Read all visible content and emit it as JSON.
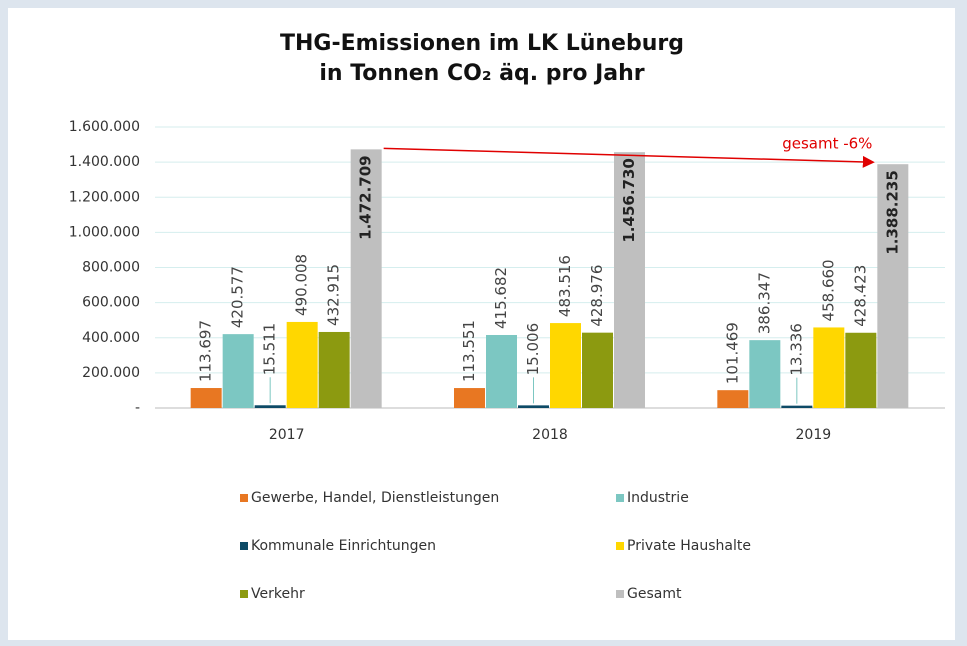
{
  "chart_data": {
    "type": "bar",
    "title": "THG-Emissionen im LK Lüneburg",
    "subtitle": "in Tonnen CO₂ äq. pro Jahr",
    "categories": [
      "2017",
      "2018",
      "2019"
    ],
    "series": [
      {
        "name": "Gewerbe, Handel, Dienstleistungen",
        "color": "#e87722",
        "values": [
          113697,
          113551,
          101469
        ],
        "value_labels": [
          "113.697",
          "113.551",
          "101.469"
        ]
      },
      {
        "name": "Industrie",
        "color": "#7cc7c2",
        "values": [
          420577,
          415682,
          386347
        ],
        "value_labels": [
          "420.577",
          "415.682",
          "386.347"
        ]
      },
      {
        "name": "Kommunale Einrichtungen",
        "color": "#0d4a66",
        "values": [
          15511,
          15006,
          13336
        ],
        "value_labels": [
          "15.511",
          "15.006",
          "13.336"
        ]
      },
      {
        "name": "Private Haushalte",
        "color": "#ffd700",
        "values": [
          490008,
          483516,
          458660
        ],
        "value_labels": [
          "490.008",
          "483.516",
          "458.660"
        ]
      },
      {
        "name": "Verkehr",
        "color": "#8c9a10",
        "values": [
          432915,
          428976,
          428423
        ],
        "value_labels": [
          "432.915",
          "428.976",
          "428.423"
        ]
      },
      {
        "name": "Gesamt",
        "color": "#bfbfbf",
        "values": [
          1472709,
          1456730,
          1388235
        ],
        "value_labels": [
          "1.472.709",
          "1.456.730",
          "1.388.235"
        ]
      }
    ],
    "ylim": [
      0,
      1600000
    ],
    "yticks": [
      {
        "value": 0,
        "label": "-"
      },
      {
        "value": 200000,
        "label": "200.000"
      },
      {
        "value": 400000,
        "label": "400.000"
      },
      {
        "value": 600000,
        "label": "600.000"
      },
      {
        "value": 800000,
        "label": "800.000"
      },
      {
        "value": 1000000,
        "label": "1.000.000"
      },
      {
        "value": 1200000,
        "label": "1.200.000"
      },
      {
        "value": 1400000,
        "label": "1.400.000"
      },
      {
        "value": 1600000,
        "label": "1.600.000"
      }
    ],
    "grid": true,
    "legend": "bottom",
    "annotation": "gesamt -6%"
  }
}
